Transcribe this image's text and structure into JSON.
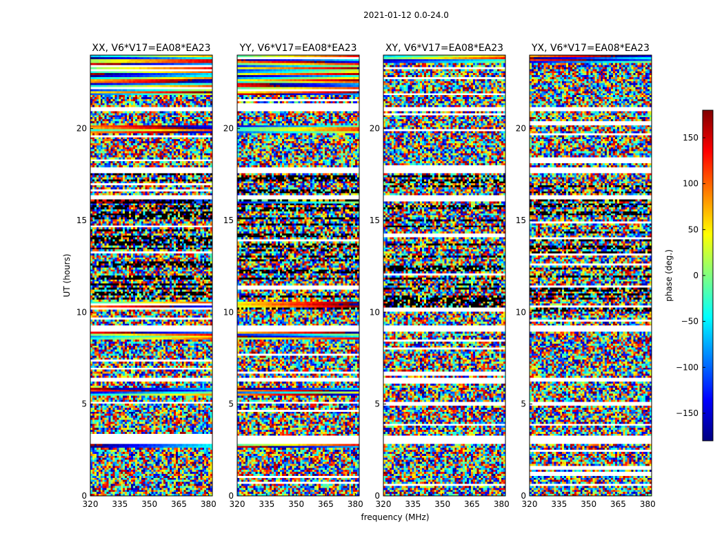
{
  "figure_title": "2021-01-12 0.0-24.0",
  "chart_data": [
    {
      "type": "heatmap",
      "title": "XX, V6*V17=EA08*EA23",
      "xlabel": "",
      "ylabel": "UT (hours)",
      "xlim": [
        320,
        382
      ],
      "ylim": [
        0,
        24
      ],
      "xticks": [
        "320",
        "335",
        "350",
        "365",
        "380"
      ],
      "yticks": [
        "0",
        "5",
        "10",
        "15",
        "20"
      ],
      "coherent_bands": [
        [
          23.0,
          24.0
        ],
        [
          21.8,
          23.0
        ],
        [
          19.8,
          20.2
        ],
        [
          15.9,
          16.2
        ],
        [
          10.3,
          10.6
        ],
        [
          8.5,
          8.9
        ],
        [
          5.5,
          5.9
        ],
        [
          2.6,
          2.8
        ]
      ],
      "flagged_bands": [
        [
          21.0,
          21.2
        ],
        [
          17.6,
          17.9
        ],
        [
          16.2,
          16.4
        ],
        [
          9.0,
          9.3
        ],
        [
          6.2,
          6.4
        ],
        [
          2.8,
          3.3
        ],
        [
          5.0,
          5.1
        ]
      ]
    },
    {
      "type": "heatmap",
      "title": "YY, V6*V17=EA08*EA23",
      "xlabel": "frequency (MHz)",
      "ylabel": "",
      "xlim": [
        320,
        382
      ],
      "ylim": [
        0,
        24
      ],
      "xticks": [
        "320",
        "335",
        "350",
        "365",
        "380"
      ],
      "yticks": [
        "0",
        "5",
        "10",
        "15",
        "20"
      ],
      "coherent_bands": [
        [
          23.0,
          24.0
        ],
        [
          21.8,
          23.0
        ],
        [
          19.8,
          20.2
        ],
        [
          15.9,
          16.2
        ],
        [
          10.3,
          10.6
        ],
        [
          8.5,
          8.9
        ],
        [
          5.5,
          5.9
        ],
        [
          2.6,
          2.8
        ]
      ],
      "flagged_bands": [
        [
          21.0,
          21.2
        ],
        [
          17.6,
          17.9
        ],
        [
          16.2,
          16.4
        ],
        [
          9.0,
          9.3
        ],
        [
          6.2,
          6.4
        ],
        [
          2.8,
          3.3
        ],
        [
          5.0,
          5.1
        ]
      ]
    },
    {
      "type": "heatmap",
      "title": "XY, V6*V17=EA08*EA23",
      "xlabel": "",
      "ylabel": "",
      "xlim": [
        320,
        382
      ],
      "ylim": [
        0,
        24
      ],
      "xticks": [
        "320",
        "335",
        "350",
        "365",
        "380"
      ],
      "yticks": [
        "0",
        "5",
        "10",
        "15",
        "20"
      ],
      "coherent_bands": [
        [
          23.6,
          24.0
        ]
      ],
      "flagged_bands": [
        [
          21.0,
          21.2
        ],
        [
          17.6,
          17.9
        ],
        [
          16.2,
          16.4
        ],
        [
          9.0,
          9.3
        ],
        [
          6.2,
          6.4
        ],
        [
          2.8,
          3.3
        ],
        [
          5.0,
          5.1
        ]
      ]
    },
    {
      "type": "heatmap",
      "title": "YX, V6*V17=EA08*EA23",
      "xlabel": "",
      "ylabel": "",
      "xlim": [
        320,
        382
      ],
      "ylim": [
        0,
        24
      ],
      "xticks": [
        "320",
        "335",
        "350",
        "365",
        "380"
      ],
      "yticks": [
        "0",
        "5",
        "10",
        "15",
        "20"
      ],
      "coherent_bands": [
        [
          23.6,
          24.0
        ]
      ],
      "flagged_bands": [
        [
          21.0,
          21.2
        ],
        [
          17.6,
          17.9
        ],
        [
          16.2,
          16.4
        ],
        [
          9.0,
          9.3
        ],
        [
          6.2,
          6.4
        ],
        [
          2.8,
          3.3
        ],
        [
          5.0,
          5.1
        ]
      ]
    }
  ],
  "colorbar": {
    "label": "phase (deg.)",
    "range": [
      -180,
      180
    ],
    "ticks": [
      150,
      100,
      50,
      0,
      -50,
      -100,
      -150
    ],
    "tick_labels": [
      "150",
      "100",
      "50",
      "0",
      "−50",
      "−100",
      "−150"
    ],
    "colormap": "jet"
  }
}
